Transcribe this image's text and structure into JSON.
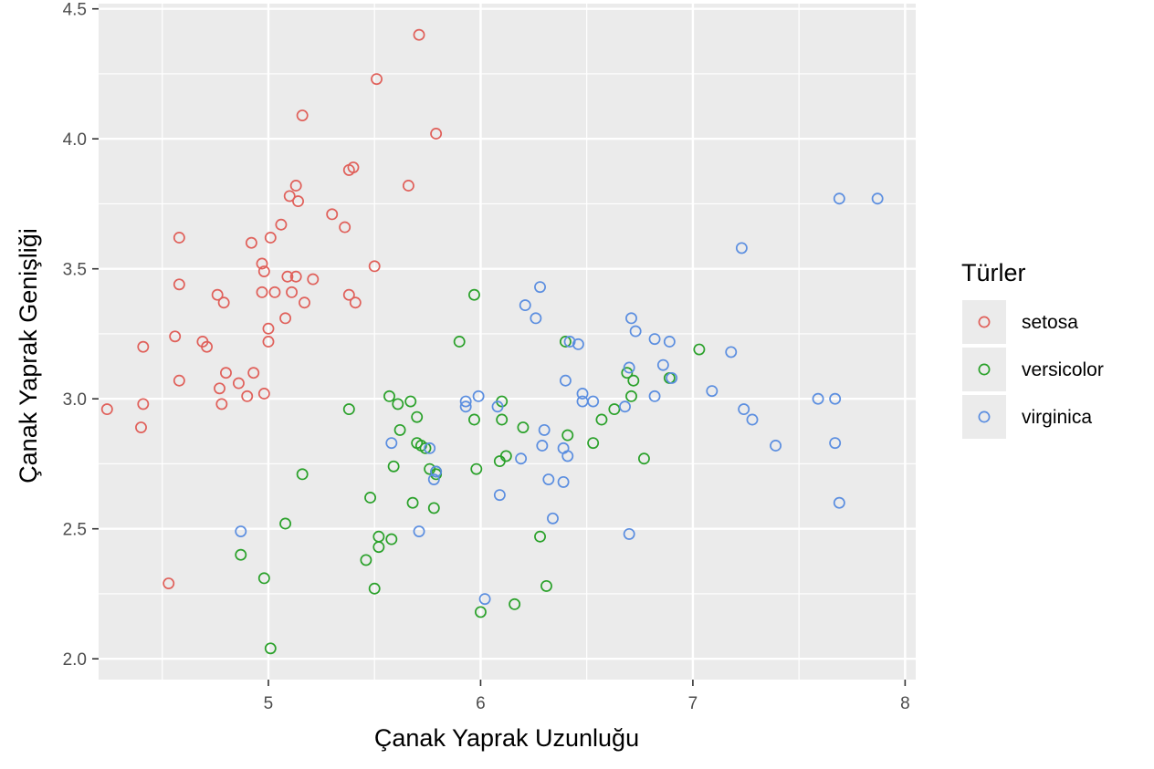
{
  "chart_data": {
    "type": "scatter",
    "title": "",
    "xlabel": "Çanak Yaprak Uzunluğu",
    "ylabel": "Çanak Yaprak Genişliği",
    "xlim": [
      4.2,
      8.05
    ],
    "ylim": [
      1.92,
      4.52
    ],
    "x_ticks": [
      5,
      6,
      7,
      8
    ],
    "y_ticks": [
      2.0,
      2.5,
      3.0,
      3.5,
      4.0,
      4.5
    ],
    "x_tick_labels": [
      "5",
      "6",
      "7",
      "8"
    ],
    "y_tick_labels": [
      "2.0",
      "2.5",
      "3.0",
      "3.5",
      "4.0",
      "4.5"
    ],
    "grid": true,
    "legend_position": "right",
    "legend_title": "Türler",
    "series": [
      {
        "name": "setosa",
        "color": "#e0605a",
        "points": [
          [
            4.24,
            2.96
          ],
          [
            4.41,
            3.2
          ],
          [
            4.41,
            2.98
          ],
          [
            4.4,
            2.89
          ],
          [
            4.53,
            2.29
          ],
          [
            4.56,
            3.24
          ],
          [
            4.58,
            3.62
          ],
          [
            4.58,
            3.44
          ],
          [
            4.58,
            3.07
          ],
          [
            4.69,
            3.22
          ],
          [
            4.71,
            3.2
          ],
          [
            4.76,
            3.4
          ],
          [
            4.77,
            3.04
          ],
          [
            4.78,
            2.98
          ],
          [
            4.79,
            3.37
          ],
          [
            4.8,
            3.1
          ],
          [
            4.86,
            3.06
          ],
          [
            4.9,
            3.01
          ],
          [
            4.92,
            3.6
          ],
          [
            4.93,
            3.1
          ],
          [
            4.97,
            3.52
          ],
          [
            4.97,
            3.41
          ],
          [
            4.98,
            3.49
          ],
          [
            4.98,
            3.02
          ],
          [
            5.0,
            3.22
          ],
          [
            5.0,
            3.27
          ],
          [
            5.01,
            3.62
          ],
          [
            5.03,
            3.41
          ],
          [
            5.06,
            3.67
          ],
          [
            5.08,
            3.31
          ],
          [
            5.09,
            3.47
          ],
          [
            5.1,
            3.78
          ],
          [
            5.11,
            3.41
          ],
          [
            5.13,
            3.47
          ],
          [
            5.13,
            3.82
          ],
          [
            5.14,
            3.76
          ],
          [
            5.16,
            4.09
          ],
          [
            5.17,
            3.37
          ],
          [
            5.21,
            3.46
          ],
          [
            5.3,
            3.71
          ],
          [
            5.36,
            3.66
          ],
          [
            5.38,
            3.88
          ],
          [
            5.38,
            3.4
          ],
          [
            5.4,
            3.89
          ],
          [
            5.41,
            3.37
          ],
          [
            5.5,
            3.51
          ],
          [
            5.51,
            4.23
          ],
          [
            5.66,
            3.82
          ],
          [
            5.71,
            4.4
          ],
          [
            5.79,
            4.02
          ]
        ]
      },
      {
        "name": "versicolor",
        "color": "#2aa12a",
        "points": [
          [
            4.87,
            2.4
          ],
          [
            4.98,
            2.31
          ],
          [
            5.01,
            2.04
          ],
          [
            5.08,
            2.52
          ],
          [
            5.16,
            2.71
          ],
          [
            5.38,
            2.96
          ],
          [
            5.46,
            2.38
          ],
          [
            5.48,
            2.62
          ],
          [
            5.5,
            2.27
          ],
          [
            5.52,
            2.47
          ],
          [
            5.52,
            2.43
          ],
          [
            5.57,
            3.01
          ],
          [
            5.58,
            2.46
          ],
          [
            5.59,
            2.74
          ],
          [
            5.61,
            2.98
          ],
          [
            5.62,
            2.88
          ],
          [
            5.67,
            2.99
          ],
          [
            5.68,
            2.6
          ],
          [
            5.7,
            2.83
          ],
          [
            5.7,
            2.93
          ],
          [
            5.72,
            2.82
          ],
          [
            5.74,
            2.81
          ],
          [
            5.76,
            2.73
          ],
          [
            5.78,
            2.58
          ],
          [
            5.79,
            2.72
          ],
          [
            5.79,
            2.71
          ],
          [
            5.9,
            3.22
          ],
          [
            5.97,
            2.92
          ],
          [
            5.97,
            3.4
          ],
          [
            5.98,
            2.73
          ],
          [
            6.0,
            2.18
          ],
          [
            6.09,
            2.76
          ],
          [
            6.1,
            2.99
          ],
          [
            6.1,
            2.92
          ],
          [
            6.12,
            2.78
          ],
          [
            6.16,
            2.21
          ],
          [
            6.2,
            2.89
          ],
          [
            6.28,
            2.47
          ],
          [
            6.31,
            2.28
          ],
          [
            6.4,
            3.22
          ],
          [
            6.41,
            2.86
          ],
          [
            6.53,
            2.83
          ],
          [
            6.57,
            2.92
          ],
          [
            6.63,
            2.96
          ],
          [
            6.69,
            3.1
          ],
          [
            6.71,
            3.01
          ],
          [
            6.72,
            3.07
          ],
          [
            6.77,
            2.77
          ],
          [
            6.89,
            3.08
          ],
          [
            7.03,
            3.19
          ]
        ]
      },
      {
        "name": "virginica",
        "color": "#5b8ee0",
        "points": [
          [
            4.87,
            2.49
          ],
          [
            5.58,
            2.83
          ],
          [
            5.71,
            2.49
          ],
          [
            5.76,
            2.81
          ],
          [
            5.78,
            2.69
          ],
          [
            5.79,
            2.72
          ],
          [
            5.93,
            2.99
          ],
          [
            5.93,
            2.97
          ],
          [
            5.99,
            3.01
          ],
          [
            6.02,
            2.23
          ],
          [
            6.08,
            2.97
          ],
          [
            6.09,
            2.63
          ],
          [
            6.19,
            2.77
          ],
          [
            6.21,
            3.36
          ],
          [
            6.26,
            3.31
          ],
          [
            6.28,
            3.43
          ],
          [
            6.29,
            2.82
          ],
          [
            6.3,
            2.88
          ],
          [
            6.32,
            2.69
          ],
          [
            6.34,
            2.54
          ],
          [
            6.39,
            2.81
          ],
          [
            6.39,
            2.68
          ],
          [
            6.4,
            3.07
          ],
          [
            6.41,
            2.78
          ],
          [
            6.42,
            3.22
          ],
          [
            6.46,
            3.21
          ],
          [
            6.48,
            3.02
          ],
          [
            6.48,
            2.99
          ],
          [
            6.53,
            2.99
          ],
          [
            6.68,
            2.97
          ],
          [
            6.7,
            3.12
          ],
          [
            6.7,
            2.48
          ],
          [
            6.71,
            3.31
          ],
          [
            6.73,
            3.26
          ],
          [
            6.82,
            3.23
          ],
          [
            6.82,
            3.01
          ],
          [
            6.86,
            3.13
          ],
          [
            6.89,
            3.22
          ],
          [
            6.9,
            3.08
          ],
          [
            7.09,
            3.03
          ],
          [
            7.18,
            3.18
          ],
          [
            7.23,
            3.58
          ],
          [
            7.24,
            2.96
          ],
          [
            7.28,
            2.92
          ],
          [
            7.39,
            2.82
          ],
          [
            7.59,
            3.0
          ],
          [
            7.67,
            3.0
          ],
          [
            7.67,
            2.83
          ],
          [
            7.69,
            2.6
          ],
          [
            7.69,
            3.77
          ],
          [
            7.87,
            3.77
          ]
        ]
      }
    ]
  }
}
